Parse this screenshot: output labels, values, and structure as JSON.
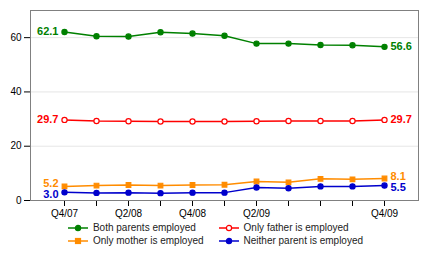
{
  "chart_data": {
    "type": "line",
    "categories": [
      "Q4/07",
      null,
      "Q2/08",
      null,
      "Q4/08",
      null,
      "Q2/09",
      null,
      null,
      null,
      "Q4/09"
    ],
    "series": [
      {
        "name": "Both parents employed",
        "color": "#008000",
        "marker": "circle",
        "values": [
          62.1,
          60.5,
          60.4,
          62.0,
          61.5,
          60.7,
          57.8,
          57.8,
          57.3,
          57.2,
          56.6
        ],
        "value_labels": [
          "62.1",
          null,
          null,
          null,
          null,
          null,
          null,
          null,
          null,
          null,
          "56.6"
        ]
      },
      {
        "name": "Only father is employed",
        "color": "#ff0000",
        "marker": "hollow-circle",
        "values": [
          29.7,
          29.3,
          29.2,
          29.1,
          29.1,
          29.1,
          29.2,
          29.3,
          29.3,
          29.3,
          29.7
        ],
        "value_labels": [
          "29.7",
          null,
          null,
          null,
          null,
          null,
          null,
          null,
          null,
          null,
          "29.7"
        ]
      },
      {
        "name": "Only mother is employed",
        "color": "#ff8c00",
        "marker": "square",
        "values": [
          5.2,
          5.5,
          5.7,
          5.5,
          5.7,
          5.8,
          7.0,
          6.7,
          8.0,
          7.8,
          8.1
        ],
        "value_labels": [
          "5.2",
          null,
          null,
          null,
          null,
          null,
          null,
          null,
          null,
          null,
          "8.1"
        ]
      },
      {
        "name": "Neither parent is employed",
        "color": "#0000cc",
        "marker": "circle",
        "values": [
          3.0,
          2.8,
          2.9,
          2.7,
          2.9,
          2.9,
          4.8,
          4.5,
          5.2,
          5.2,
          5.5
        ],
        "value_labels": [
          "3.0",
          null,
          null,
          null,
          null,
          null,
          null,
          null,
          null,
          null,
          "5.5"
        ]
      }
    ],
    "ylim": [
      0,
      70
    ],
    "yticks": [
      0,
      20,
      40,
      60
    ],
    "grid": true,
    "data_labels": true,
    "legend": "bottom"
  }
}
